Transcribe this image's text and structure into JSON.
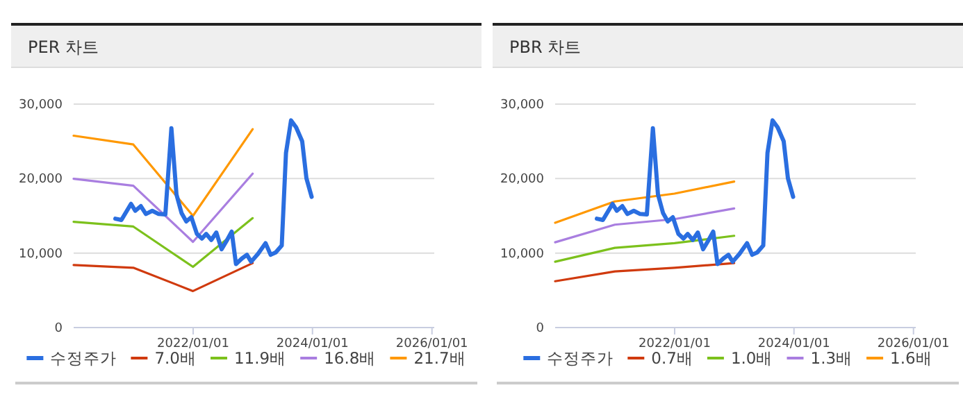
{
  "chart_data": [
    {
      "type": "line",
      "title": "PER 차트",
      "xlim": [
        "2020-01-01",
        "2026-01-15"
      ],
      "xticks": [
        {
          "value": "2022-01-01",
          "label": "2022/01/01"
        },
        {
          "value": "2024-01-01",
          "label": "2024/01/01"
        },
        {
          "value": "2026-01-01",
          "label": "2026/01/01"
        }
      ],
      "ylim": [
        0,
        30000
      ],
      "yticks": [
        0,
        {
          "value": 10000,
          "label": "10,000"
        },
        {
          "value": 20000,
          "label": "20,000"
        },
        {
          "value": 30000,
          "label": "30,000"
        }
      ],
      "grid": "y",
      "legend": "bottom",
      "series": [
        {
          "name": "수정주가",
          "color": "#2a6ee0",
          "x": [
            "2020-09-12",
            "2020-10-19",
            "2020-12-17",
            "2021-01-12",
            "2021-02-15",
            "2021-03-18",
            "2021-04-26",
            "2021-06-04",
            "2021-07-15",
            "2021-08-21",
            "2021-09-21",
            "2021-10-22",
            "2021-11-20",
            "2021-12-21",
            "2022-01-24",
            "2022-02-24",
            "2022-03-22",
            "2022-04-22",
            "2022-05-23",
            "2022-06-24",
            "2022-07-25",
            "2022-08-25",
            "2022-09-20",
            "2022-10-26",
            "2022-11-26",
            "2022-12-22",
            "2023-02-02",
            "2023-03-20",
            "2023-04-20",
            "2023-05-21",
            "2023-06-27",
            "2023-07-23",
            "2023-08-23",
            "2023-09-23",
            "2023-10-30",
            "2023-11-25",
            "2023-12-27"
          ],
          "values": [
            14620,
            14440,
            16610,
            15680,
            16300,
            15250,
            15680,
            15250,
            15180,
            26760,
            17860,
            15370,
            14250,
            14810,
            12570,
            11950,
            12570,
            11760,
            12760,
            10520,
            11640,
            12880,
            8530,
            9270,
            9770,
            8840,
            9890,
            11330,
            9770,
            10080,
            11010,
            23460,
            27820,
            26880,
            25020,
            20040,
            17550
          ]
        },
        {
          "name": "7.0배",
          "color": "#d03a0e",
          "x": [
            "2020-01-01",
            "2020-12-31",
            "2021-12-31",
            "2022-12-31"
          ],
          "values": [
            8400,
            8030,
            4900,
            8650
          ]
        },
        {
          "name": "11.9배",
          "color": "#7cc11c",
          "x": [
            "2020-01-01",
            "2020-12-31",
            "2021-12-31",
            "2022-12-31"
          ],
          "values": [
            14190,
            13560,
            8150,
            14690
          ]
        },
        {
          "name": "16.8배",
          "color": "#a97ee0",
          "x": [
            "2020-01-01",
            "2020-12-31",
            "2021-12-31",
            "2022-12-31"
          ],
          "values": [
            19980,
            19040,
            11510,
            20660
          ]
        },
        {
          "name": "21.7배",
          "color": "#ff9800",
          "x": [
            "2020-01-01",
            "2020-12-31",
            "2021-12-31",
            "2022-12-31"
          ],
          "values": [
            25760,
            24580,
            15000,
            26630
          ]
        }
      ]
    },
    {
      "type": "line",
      "title": "PBR 차트",
      "xlim": [
        "2020-01-01",
        "2026-01-15"
      ],
      "xticks": [
        {
          "value": "2022-01-01",
          "label": "2022/01/01"
        },
        {
          "value": "2024-01-01",
          "label": "2024/01/01"
        },
        {
          "value": "2026-01-01",
          "label": "2026/01/01"
        }
      ],
      "ylim": [
        0,
        30000
      ],
      "yticks": [
        0,
        {
          "value": 10000,
          "label": "10,000"
        },
        {
          "value": 20000,
          "label": "20,000"
        },
        {
          "value": 30000,
          "label": "30,000"
        }
      ],
      "grid": "y",
      "legend": "bottom",
      "series": [
        {
          "name": "수정주가",
          "color": "#2a6ee0",
          "x": [
            "2020-09-12",
            "2020-10-19",
            "2020-12-17",
            "2021-01-12",
            "2021-02-15",
            "2021-03-18",
            "2021-04-26",
            "2021-06-04",
            "2021-07-15",
            "2021-08-21",
            "2021-09-21",
            "2021-10-22",
            "2021-11-20",
            "2021-12-21",
            "2022-01-24",
            "2022-02-24",
            "2022-03-22",
            "2022-04-22",
            "2022-05-23",
            "2022-06-24",
            "2022-07-25",
            "2022-08-25",
            "2022-09-20",
            "2022-10-26",
            "2022-11-26",
            "2022-12-22",
            "2023-02-02",
            "2023-03-20",
            "2023-04-20",
            "2023-05-21",
            "2023-06-27",
            "2023-07-23",
            "2023-08-23",
            "2023-09-23",
            "2023-10-30",
            "2023-11-25",
            "2023-12-27"
          ],
          "values": [
            14620,
            14440,
            16610,
            15680,
            16300,
            15250,
            15680,
            15250,
            15180,
            26760,
            17860,
            15370,
            14250,
            14810,
            12570,
            11950,
            12570,
            11760,
            12760,
            10520,
            11640,
            12880,
            8530,
            9270,
            9770,
            8840,
            9890,
            11330,
            9770,
            10080,
            11010,
            23460,
            27820,
            26880,
            25020,
            20040,
            17550
          ]
        },
        {
          "name": "0.7배",
          "color": "#d03a0e",
          "x": [
            "2020-01-01",
            "2020-12-31",
            "2021-12-31",
            "2022-12-31"
          ],
          "values": [
            6220,
            7530,
            8030,
            8650
          ]
        },
        {
          "name": "1.0배",
          "color": "#7cc11c",
          "x": [
            "2020-01-01",
            "2020-12-31",
            "2021-12-31",
            "2022-12-31"
          ],
          "values": [
            8840,
            10700,
            11330,
            12320
          ]
        },
        {
          "name": "1.3배",
          "color": "#a97ee0",
          "x": [
            "2020-01-01",
            "2020-12-31",
            "2021-12-31",
            "2022-12-31"
          ],
          "values": [
            11450,
            13810,
            14560,
            15990
          ]
        },
        {
          "name": "1.6배",
          "color": "#ff9800",
          "x": [
            "2020-01-01",
            "2020-12-31",
            "2021-12-31",
            "2022-12-31"
          ],
          "values": [
            14060,
            16930,
            17980,
            19600
          ]
        }
      ]
    }
  ]
}
